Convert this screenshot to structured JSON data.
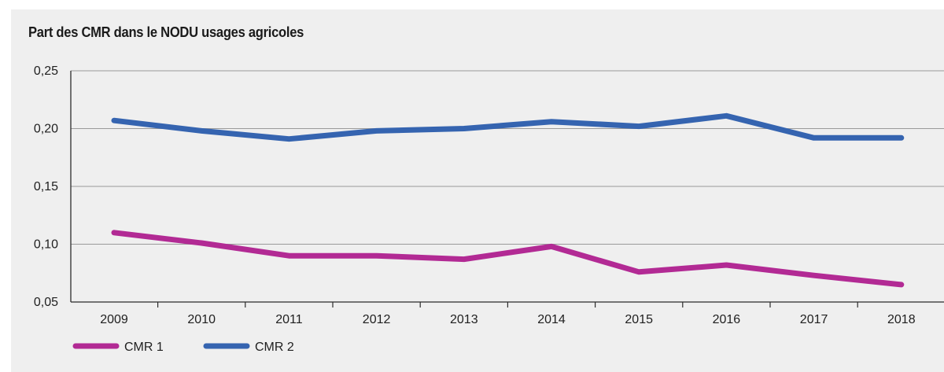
{
  "chart_data": {
    "type": "line",
    "title": "Part des CMR dans le NODU usages agricoles",
    "x": [
      "2009",
      "2010",
      "2011",
      "2012",
      "2013",
      "2014",
      "2015",
      "2016",
      "2017",
      "2018"
    ],
    "yticks": [
      "0,05",
      "0,10",
      "0,15",
      "0,20",
      "0,25"
    ],
    "ylim": [
      0.05,
      0.25
    ],
    "grid": true,
    "legend_position": "bottom-left",
    "series": [
      {
        "name": "CMR 1",
        "color": "#b22a94",
        "values": [
          0.11,
          0.101,
          0.09,
          0.09,
          0.087,
          0.098,
          0.076,
          0.082,
          0.073,
          0.065
        ]
      },
      {
        "name": "CMR 2",
        "color": "#3564b0",
        "values": [
          0.207,
          0.198,
          0.191,
          0.198,
          0.2,
          0.206,
          0.202,
          0.211,
          0.192,
          0.192
        ]
      }
    ]
  }
}
